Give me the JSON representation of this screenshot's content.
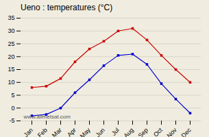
{
  "chart_data": {
    "type": "line",
    "title": "Ueno : temperatures (°C)",
    "categories": [
      "Jan",
      "Feb",
      "Mar",
      "Apr",
      "May",
      "Jun",
      "Jul",
      "Aug",
      "Sep",
      "Oct",
      "Nov",
      "Dec"
    ],
    "series": [
      {
        "color": "#cc0000",
        "marker": "square",
        "values": [
          8,
          8.5,
          11.5,
          18,
          23,
          26,
          30,
          31,
          26.5,
          20.5,
          15,
          10
        ]
      },
      {
        "color": "#0000cc",
        "marker": "square",
        "values": [
          -3,
          -2.5,
          0,
          6,
          11,
          16.5,
          20.5,
          21,
          17,
          9.5,
          3.5,
          -2
        ]
      }
    ],
    "ylim": [
      -5,
      35
    ],
    "yticks": [
      -5,
      0,
      5,
      10,
      15,
      20,
      25,
      30,
      35
    ],
    "grid": true,
    "annotations": [
      "www.allmetsat.com"
    ]
  }
}
